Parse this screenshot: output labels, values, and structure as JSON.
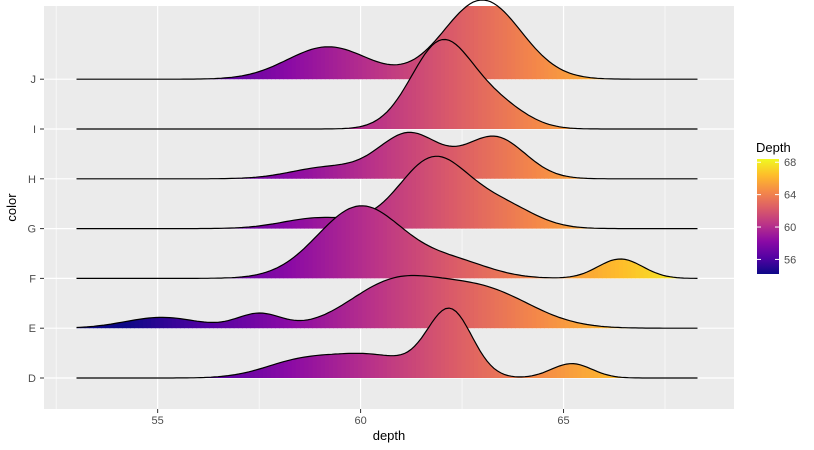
{
  "chart_data": {
    "type": "ridgeline",
    "xlabel": "depth",
    "ylabel": "color",
    "xlim": [
      52.2,
      69.2
    ],
    "x_ticks": [
      55,
      60,
      65
    ],
    "categories": [
      "D",
      "E",
      "F",
      "G",
      "H",
      "I",
      "J"
    ],
    "grid": true,
    "fill_scale": {
      "title": "Depth",
      "range": [
        54.2,
        68.4
      ],
      "breaks": [
        56,
        60,
        64,
        68
      ],
      "palette": "plasma"
    },
    "series": [
      {
        "name": "D",
        "components": [
          {
            "mean": 58.5,
            "sd": 0.9,
            "weight": 0.22
          },
          {
            "mean": 60.3,
            "sd": 1.0,
            "weight": 0.3
          },
          {
            "mean": 62.2,
            "sd": 0.55,
            "weight": 0.92
          },
          {
            "mean": 65.2,
            "sd": 0.5,
            "weight": 0.2
          }
        ]
      },
      {
        "name": "E",
        "components": [
          {
            "mean": 55.1,
            "sd": 0.9,
            "weight": 0.15
          },
          {
            "mean": 57.5,
            "sd": 0.55,
            "weight": 0.2
          },
          {
            "mean": 60.8,
            "sd": 1.1,
            "weight": 0.6
          },
          {
            "mean": 63.0,
            "sd": 1.2,
            "weight": 0.52
          }
        ]
      },
      {
        "name": "F",
        "components": [
          {
            "mean": 60.0,
            "sd": 1.05,
            "weight": 1.0
          },
          {
            "mean": 62.3,
            "sd": 0.9,
            "weight": 0.22
          },
          {
            "mean": 66.4,
            "sd": 0.55,
            "weight": 0.27
          }
        ]
      },
      {
        "name": "G",
        "components": [
          {
            "mean": 59.0,
            "sd": 0.9,
            "weight": 0.15
          },
          {
            "mean": 61.8,
            "sd": 0.85,
            "weight": 0.97
          },
          {
            "mean": 63.5,
            "sd": 0.8,
            "weight": 0.3
          }
        ]
      },
      {
        "name": "H",
        "components": [
          {
            "mean": 59.2,
            "sd": 0.9,
            "weight": 0.16
          },
          {
            "mean": 61.2,
            "sd": 0.75,
            "weight": 0.62
          },
          {
            "mean": 63.3,
            "sd": 0.75,
            "weight": 0.58
          }
        ]
      },
      {
        "name": "I",
        "components": [
          {
            "mean": 62.0,
            "sd": 0.75,
            "weight": 1.2
          },
          {
            "mean": 63.4,
            "sd": 0.7,
            "weight": 0.3
          }
        ]
      },
      {
        "name": "J",
        "components": [
          {
            "mean": 59.2,
            "sd": 1.0,
            "weight": 0.45
          },
          {
            "mean": 63.0,
            "sd": 0.95,
            "weight": 1.1
          }
        ]
      }
    ]
  }
}
